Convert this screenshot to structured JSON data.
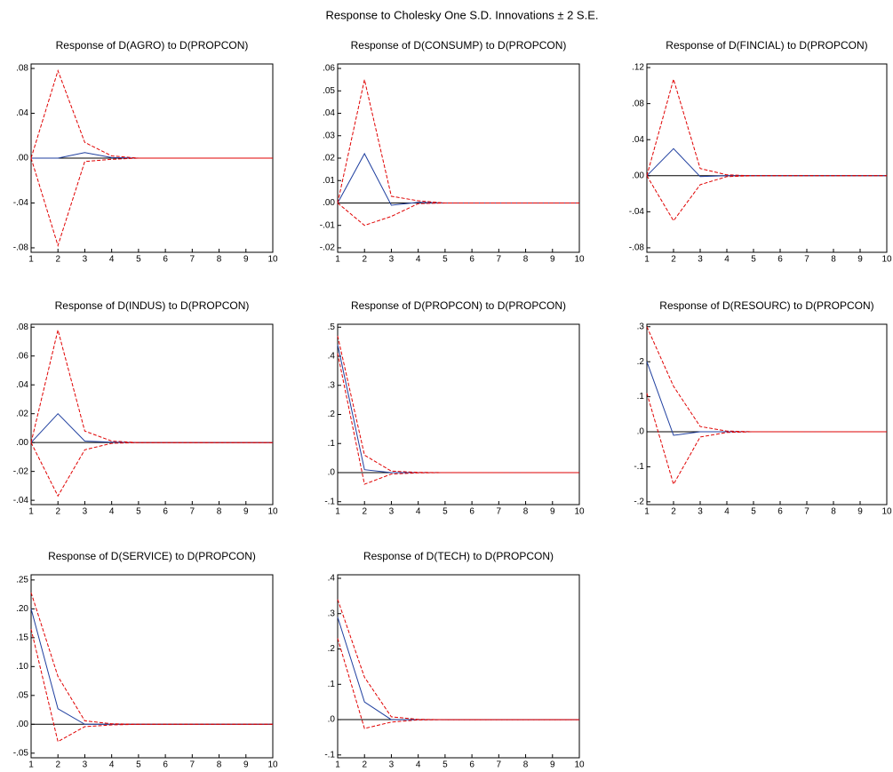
{
  "title": "Response to Cholesky One S.D. Innovations ± 2 S.E.",
  "chart_data": [
    {
      "type": "line",
      "title": "Response of D(AGRO) to D(PROPCON)",
      "x": [
        1,
        2,
        3,
        4,
        5,
        6,
        7,
        8,
        9,
        10
      ],
      "xlim": [
        1,
        10
      ],
      "xticks": [
        1,
        2,
        3,
        4,
        5,
        6,
        7,
        8,
        9,
        10
      ],
      "ylim": [
        -0.084,
        0.084
      ],
      "yticks": [
        {
          "value": 0.08,
          "label": ".08"
        },
        {
          "value": 0.04,
          "label": ".04"
        },
        {
          "value": 0,
          "label": ".00"
        },
        {
          "value": -0.04,
          "label": "-.04"
        },
        {
          "value": -0.08,
          "label": "-.08"
        }
      ],
      "series": [
        {
          "color": "#1f3f9f",
          "values": [
            0,
            0,
            0.005,
            0.0005,
            0,
            0,
            0,
            0,
            0,
            0
          ]
        },
        {
          "color": "#e00000",
          "dashed": true,
          "values": [
            0,
            0.078,
            0.014,
            0.002,
            0,
            0,
            0,
            0,
            0,
            0
          ]
        },
        {
          "color": "#e00000",
          "dashed": true,
          "values": [
            0,
            -0.078,
            -0.003,
            -0.001,
            0,
            0,
            0,
            0,
            0,
            0
          ]
        }
      ]
    },
    {
      "type": "line",
      "title": "Response of D(CONSUMP) to D(PROPCON)",
      "x": [
        1,
        2,
        3,
        4,
        5,
        6,
        7,
        8,
        9,
        10
      ],
      "xlim": [
        1,
        10
      ],
      "xticks": [
        1,
        2,
        3,
        4,
        5,
        6,
        7,
        8,
        9,
        10
      ],
      "ylim": [
        -0.022,
        0.062
      ],
      "yticks": [
        {
          "value": 0.06,
          "label": ".06"
        },
        {
          "value": 0.05,
          "label": ".05"
        },
        {
          "value": 0.04,
          "label": ".04"
        },
        {
          "value": 0.03,
          "label": ".03"
        },
        {
          "value": 0.02,
          "label": ".02"
        },
        {
          "value": 0.01,
          "label": ".01"
        },
        {
          "value": 0,
          "label": ".00"
        },
        {
          "value": -0.01,
          "label": "-.01"
        },
        {
          "value": -0.02,
          "label": "-.02"
        }
      ],
      "series": [
        {
          "color": "#1f3f9f",
          "values": [
            0,
            0.022,
            -0.001,
            0.0003,
            0,
            0,
            0,
            0,
            0,
            0
          ]
        },
        {
          "color": "#e00000",
          "dashed": true,
          "values": [
            0,
            0.055,
            0.003,
            0.001,
            0,
            0,
            0,
            0,
            0,
            0
          ]
        },
        {
          "color": "#e00000",
          "dashed": true,
          "values": [
            0,
            -0.01,
            -0.006,
            -0.0003,
            0,
            0,
            0,
            0,
            0,
            0
          ]
        }
      ]
    },
    {
      "type": "line",
      "title": "Response of D(FINCIAL) to D(PROPCON)",
      "x": [
        1,
        2,
        3,
        4,
        5,
        6,
        7,
        8,
        9,
        10
      ],
      "xlim": [
        1,
        10
      ],
      "xticks": [
        1,
        2,
        3,
        4,
        5,
        6,
        7,
        8,
        9,
        10
      ],
      "ylim": [
        -0.085,
        0.124
      ],
      "yticks": [
        {
          "value": 0.12,
          "label": ".12"
        },
        {
          "value": 0.08,
          "label": ".08"
        },
        {
          "value": 0.04,
          "label": ".04"
        },
        {
          "value": 0,
          "label": ".00"
        },
        {
          "value": -0.04,
          "label": "-.04"
        },
        {
          "value": -0.08,
          "label": "-.08"
        }
      ],
      "series": [
        {
          "color": "#1f3f9f",
          "values": [
            0,
            0.03,
            -0.001,
            0,
            0,
            0,
            0,
            0,
            0,
            0
          ]
        },
        {
          "color": "#e00000",
          "dashed": true,
          "values": [
            0,
            0.107,
            0.008,
            0.001,
            0,
            0,
            0,
            0,
            0,
            0
          ]
        },
        {
          "color": "#e00000",
          "dashed": true,
          "values": [
            0,
            -0.05,
            -0.01,
            -0.001,
            0,
            0,
            0,
            0,
            0,
            0
          ]
        }
      ]
    },
    {
      "type": "line",
      "title": "Response of D(INDUS) to D(PROPCON)",
      "x": [
        1,
        2,
        3,
        4,
        5,
        6,
        7,
        8,
        9,
        10
      ],
      "xlim": [
        1,
        10
      ],
      "xticks": [
        1,
        2,
        3,
        4,
        5,
        6,
        7,
        8,
        9,
        10
      ],
      "ylim": [
        -0.043,
        0.082
      ],
      "yticks": [
        {
          "value": 0.08,
          "label": ".08"
        },
        {
          "value": 0.06,
          "label": ".06"
        },
        {
          "value": 0.04,
          "label": ".04"
        },
        {
          "value": 0.02,
          "label": ".02"
        },
        {
          "value": 0,
          "label": ".00"
        },
        {
          "value": -0.02,
          "label": "-.02"
        },
        {
          "value": -0.04,
          "label": "-.04"
        }
      ],
      "series": [
        {
          "color": "#1f3f9f",
          "values": [
            0,
            0.02,
            0.001,
            0.0003,
            0,
            0,
            0,
            0,
            0,
            0
          ]
        },
        {
          "color": "#e00000",
          "dashed": true,
          "values": [
            0,
            0.078,
            0.008,
            0.001,
            0,
            0,
            0,
            0,
            0,
            0
          ]
        },
        {
          "color": "#e00000",
          "dashed": true,
          "values": [
            0,
            -0.037,
            -0.005,
            -0.0005,
            0,
            0,
            0,
            0,
            0,
            0
          ]
        }
      ]
    },
    {
      "type": "line",
      "title": "Response of D(PROPCON) to D(PROPCON)",
      "x": [
        1,
        2,
        3,
        4,
        5,
        6,
        7,
        8,
        9,
        10
      ],
      "xlim": [
        1,
        10
      ],
      "xticks": [
        1,
        2,
        3,
        4,
        5,
        6,
        7,
        8,
        9,
        10
      ],
      "ylim": [
        -0.11,
        0.51
      ],
      "yticks": [
        {
          "value": 0.5,
          "label": ".5"
        },
        {
          "value": 0.4,
          "label": ".4"
        },
        {
          "value": 0.3,
          "label": ".3"
        },
        {
          "value": 0.2,
          "label": ".2"
        },
        {
          "value": 0.1,
          "label": ".1"
        },
        {
          "value": 0,
          "label": ".0"
        },
        {
          "value": -0.1,
          "label": "-.1"
        }
      ],
      "series": [
        {
          "color": "#1f3f9f",
          "values": [
            0.44,
            0.01,
            0,
            0,
            0,
            0,
            0,
            0,
            0,
            0
          ]
        },
        {
          "color": "#e00000",
          "dashed": true,
          "values": [
            0.47,
            0.06,
            0.005,
            0.001,
            0,
            0,
            0,
            0,
            0,
            0
          ]
        },
        {
          "color": "#e00000",
          "dashed": true,
          "values": [
            0.41,
            -0.04,
            -0.005,
            -0.001,
            0,
            0,
            0,
            0,
            0,
            0
          ]
        }
      ]
    },
    {
      "type": "line",
      "title": "Response of D(RESOURC) to D(PROPCON)",
      "x": [
        1,
        2,
        3,
        4,
        5,
        6,
        7,
        8,
        9,
        10
      ],
      "xlim": [
        1,
        10
      ],
      "xticks": [
        1,
        2,
        3,
        4,
        5,
        6,
        7,
        8,
        9,
        10
      ],
      "ylim": [
        -0.208,
        0.307
      ],
      "yticks": [
        {
          "value": 0.3,
          "label": ".3"
        },
        {
          "value": 0.2,
          "label": ".2"
        },
        {
          "value": 0.1,
          "label": ".1"
        },
        {
          "value": 0,
          "label": ".0"
        },
        {
          "value": -0.1,
          "label": "-.1"
        },
        {
          "value": -0.2,
          "label": "-.2"
        }
      ],
      "series": [
        {
          "color": "#1f3f9f",
          "values": [
            0.2,
            -0.01,
            0,
            0,
            0,
            0,
            0,
            0,
            0,
            0
          ]
        },
        {
          "color": "#e00000",
          "dashed": true,
          "values": [
            0.3,
            0.13,
            0.015,
            0.002,
            0,
            0,
            0,
            0,
            0,
            0
          ]
        },
        {
          "color": "#e00000",
          "dashed": true,
          "values": [
            0.11,
            -0.15,
            -0.015,
            -0.002,
            0,
            0,
            0,
            0,
            0,
            0
          ]
        }
      ]
    },
    {
      "type": "line",
      "title": "Response of D(SERVICE) to D(PROPCON)",
      "x": [
        1,
        2,
        3,
        4,
        5,
        6,
        7,
        8,
        9,
        10
      ],
      "xlim": [
        1,
        10
      ],
      "xticks": [
        1,
        2,
        3,
        4,
        5,
        6,
        7,
        8,
        9,
        10
      ],
      "ylim": [
        -0.058,
        0.259
      ],
      "yticks": [
        {
          "value": 0.25,
          "label": ".25"
        },
        {
          "value": 0.2,
          "label": ".20"
        },
        {
          "value": 0.15,
          "label": ".15"
        },
        {
          "value": 0.1,
          "label": ".10"
        },
        {
          "value": 0.05,
          "label": ".05"
        },
        {
          "value": 0,
          "label": ".00"
        },
        {
          "value": -0.05,
          "label": "-.05"
        }
      ],
      "series": [
        {
          "color": "#1f3f9f",
          "values": [
            0.2,
            0.027,
            0,
            0,
            0,
            0,
            0,
            0,
            0,
            0
          ]
        },
        {
          "color": "#e00000",
          "dashed": true,
          "values": [
            0.228,
            0.083,
            0.006,
            0.001,
            0,
            0,
            0,
            0,
            0,
            0
          ]
        },
        {
          "color": "#e00000",
          "dashed": true,
          "values": [
            0.165,
            -0.03,
            -0.004,
            -0.001,
            0,
            0,
            0,
            0,
            0,
            0
          ]
        }
      ]
    },
    {
      "type": "line",
      "title": "Response of D(TECH) to D(PROPCON)",
      "x": [
        1,
        2,
        3,
        4,
        5,
        6,
        7,
        8,
        9,
        10
      ],
      "xlim": [
        1,
        10
      ],
      "xticks": [
        1,
        2,
        3,
        4,
        5,
        6,
        7,
        8,
        9,
        10
      ],
      "ylim": [
        -0.108,
        0.41
      ],
      "yticks": [
        {
          "value": 0.4,
          "label": ".4"
        },
        {
          "value": 0.3,
          "label": ".3"
        },
        {
          "value": 0.2,
          "label": ".2"
        },
        {
          "value": 0.1,
          "label": ".1"
        },
        {
          "value": 0,
          "label": ".0"
        },
        {
          "value": -0.1,
          "label": "-.1"
        }
      ],
      "series": [
        {
          "color": "#1f3f9f",
          "values": [
            0.29,
            0.05,
            0,
            0,
            0,
            0,
            0,
            0,
            0,
            0
          ]
        },
        {
          "color": "#e00000",
          "dashed": true,
          "values": [
            0.34,
            0.12,
            0.008,
            0.001,
            0,
            0,
            0,
            0,
            0,
            0
          ]
        },
        {
          "color": "#e00000",
          "dashed": true,
          "values": [
            0.23,
            -0.025,
            -0.007,
            -0.001,
            0,
            0,
            0,
            0,
            0,
            0
          ]
        }
      ]
    }
  ]
}
